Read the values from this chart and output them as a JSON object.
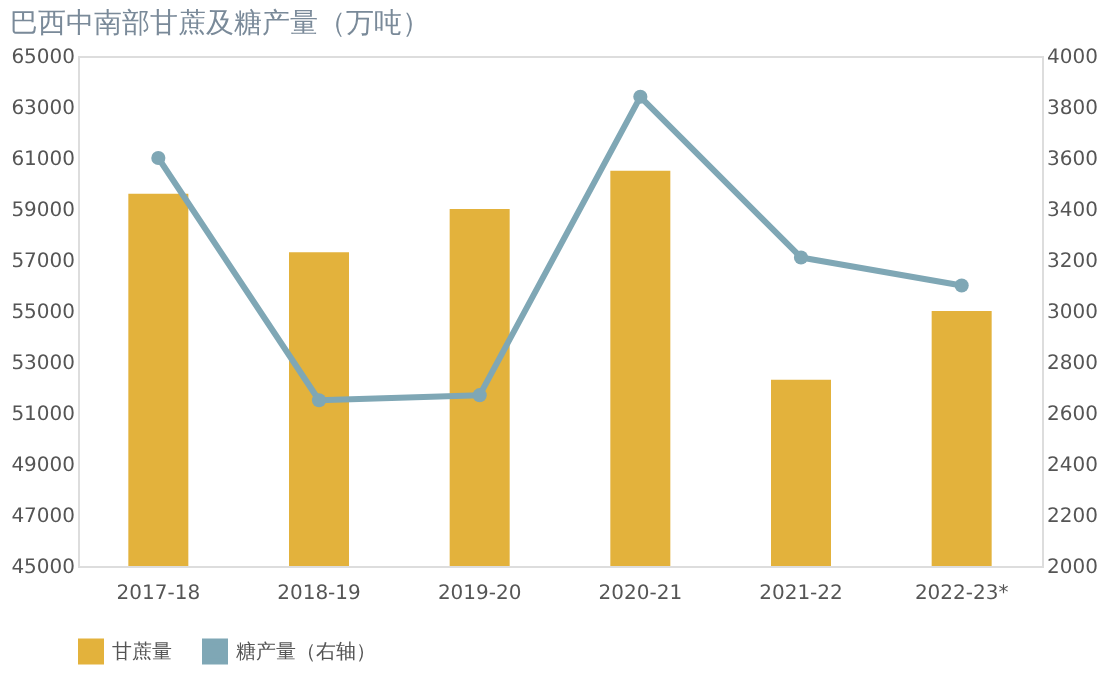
{
  "chart_data": {
    "type": "bar",
    "title": "巴西中南部甘蔗及糖产量（万吨）",
    "categories": [
      "2017-18",
      "2018-19",
      "2019-20",
      "2020-21",
      "2021-22",
      "2022-23*"
    ],
    "series": [
      {
        "name": "甘蔗量",
        "color": "#e3b23c",
        "values": [
          59600,
          57300,
          59000,
          60500,
          52300,
          55000
        ]
      },
      {
        "name": "糖产量（右轴）",
        "type": "line",
        "axis": "y2",
        "color": "#7fa7b5",
        "marker": "circle",
        "values": [
          3600,
          2650,
          2670,
          3840,
          3210,
          3100
        ]
      }
    ],
    "ylim": [
      45000,
      65000
    ],
    "yticks": [
      45000,
      47000,
      49000,
      51000,
      53000,
      55000,
      57000,
      59000,
      61000,
      63000,
      65000
    ],
    "y2lim": [
      2000,
      4000
    ],
    "y2ticks": [
      2000,
      2200,
      2400,
      2600,
      2800,
      3000,
      3200,
      3400,
      3600,
      3800,
      4000
    ],
    "grid": false,
    "legend": "bottom"
  }
}
